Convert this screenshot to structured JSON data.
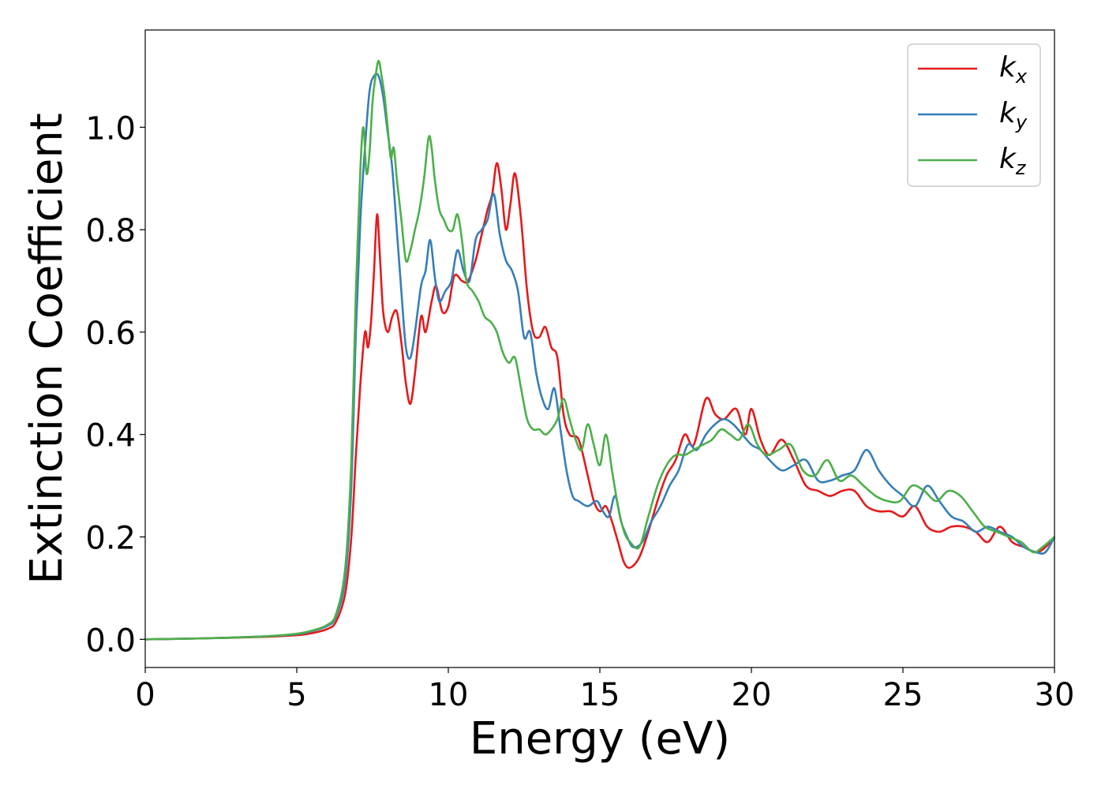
{
  "chart_data": {
    "type": "line",
    "title": "",
    "xlabel": "Energy (eV)",
    "ylabel": "Extinction Coefficient",
    "xlim": [
      0,
      30
    ],
    "ylim": [
      -0.055,
      1.19
    ],
    "xticks": [
      0,
      5,
      10,
      15,
      20,
      25,
      30
    ],
    "yticks": [
      0.0,
      0.2,
      0.4,
      0.6,
      0.8,
      1.0
    ],
    "xtick_labels": [
      "0",
      "5",
      "10",
      "15",
      "20",
      "25",
      "30"
    ],
    "ytick_labels": [
      "0.0",
      "0.2",
      "0.4",
      "0.6",
      "0.8",
      "1.0"
    ],
    "grid": false,
    "legend_position": "top-right",
    "series": [
      {
        "name": "kx",
        "label_base": "k",
        "label_sub": "x",
        "color": "#e41a1c",
        "x": [
          0,
          2,
          4,
          5,
          5.5,
          6,
          6.3,
          6.6,
          6.8,
          6.95,
          7.1,
          7.25,
          7.35,
          7.45,
          7.55,
          7.65,
          7.75,
          7.85,
          8.0,
          8.15,
          8.3,
          8.45,
          8.6,
          8.75,
          8.9,
          9.1,
          9.25,
          9.45,
          9.6,
          9.8,
          10.0,
          10.2,
          10.45,
          10.65,
          10.9,
          11.1,
          11.3,
          11.45,
          11.6,
          11.75,
          11.9,
          12.05,
          12.2,
          12.4,
          12.6,
          12.8,
          13.0,
          13.2,
          13.4,
          13.6,
          13.8,
          14.0,
          14.3,
          14.6,
          14.8,
          15.0,
          15.2,
          15.4,
          15.6,
          15.8,
          16.0,
          16.3,
          16.6,
          16.9,
          17.2,
          17.5,
          17.8,
          18.1,
          18.5,
          18.8,
          19.1,
          19.5,
          19.8,
          20.0,
          20.3,
          20.6,
          21.0,
          21.4,
          21.8,
          22.2,
          22.6,
          23.0,
          23.4,
          23.8,
          24.2,
          24.6,
          25.0,
          25.4,
          25.8,
          26.2,
          26.6,
          27.0,
          27.4,
          27.8,
          28.2,
          28.6,
          29.0,
          29.4,
          29.7,
          30.0
        ],
        "y": [
          0.0,
          0.002,
          0.005,
          0.008,
          0.012,
          0.02,
          0.035,
          0.09,
          0.2,
          0.36,
          0.5,
          0.6,
          0.57,
          0.62,
          0.72,
          0.83,
          0.74,
          0.64,
          0.6,
          0.63,
          0.64,
          0.58,
          0.5,
          0.46,
          0.52,
          0.63,
          0.6,
          0.66,
          0.69,
          0.64,
          0.65,
          0.71,
          0.7,
          0.7,
          0.74,
          0.79,
          0.84,
          0.87,
          0.93,
          0.88,
          0.8,
          0.85,
          0.91,
          0.82,
          0.68,
          0.6,
          0.59,
          0.61,
          0.57,
          0.55,
          0.44,
          0.4,
          0.39,
          0.32,
          0.27,
          0.25,
          0.26,
          0.23,
          0.19,
          0.15,
          0.14,
          0.16,
          0.21,
          0.27,
          0.32,
          0.35,
          0.4,
          0.38,
          0.47,
          0.44,
          0.43,
          0.45,
          0.4,
          0.45,
          0.39,
          0.36,
          0.39,
          0.35,
          0.3,
          0.29,
          0.28,
          0.29,
          0.29,
          0.26,
          0.25,
          0.25,
          0.24,
          0.26,
          0.22,
          0.21,
          0.22,
          0.22,
          0.21,
          0.19,
          0.22,
          0.19,
          0.18,
          0.17,
          0.18,
          0.2
        ]
      },
      {
        "name": "ky",
        "label_base": "k",
        "label_sub": "y",
        "color": "#377eb8",
        "x": [
          0,
          2,
          4,
          5,
          5.5,
          6,
          6.3,
          6.6,
          6.8,
          6.95,
          7.1,
          7.25,
          7.4,
          7.55,
          7.7,
          7.85,
          8.0,
          8.15,
          8.3,
          8.45,
          8.6,
          8.75,
          8.9,
          9.1,
          9.25,
          9.4,
          9.55,
          9.7,
          9.9,
          10.1,
          10.3,
          10.5,
          10.7,
          10.9,
          11.1,
          11.3,
          11.5,
          11.7,
          11.9,
          12.1,
          12.3,
          12.5,
          12.7,
          12.9,
          13.1,
          13.3,
          13.5,
          13.7,
          13.9,
          14.1,
          14.3,
          14.6,
          14.9,
          15.1,
          15.3,
          15.5,
          15.7,
          15.9,
          16.1,
          16.4,
          16.7,
          17.0,
          17.3,
          17.6,
          17.9,
          18.2,
          18.5,
          18.8,
          19.1,
          19.4,
          19.7,
          20.0,
          20.3,
          20.6,
          21.0,
          21.4,
          21.8,
          22.2,
          22.6,
          23.0,
          23.4,
          23.8,
          24.2,
          24.6,
          25.0,
          25.4,
          25.8,
          26.2,
          26.6,
          27.0,
          27.4,
          27.8,
          28.2,
          28.6,
          29.0,
          29.4,
          29.7,
          30.0
        ],
        "y": [
          0.0,
          0.002,
          0.006,
          0.01,
          0.016,
          0.026,
          0.045,
          0.12,
          0.3,
          0.6,
          0.82,
          0.96,
          1.07,
          1.1,
          1.1,
          1.06,
          0.99,
          0.92,
          0.8,
          0.68,
          0.57,
          0.55,
          0.6,
          0.69,
          0.72,
          0.78,
          0.71,
          0.66,
          0.68,
          0.7,
          0.76,
          0.72,
          0.7,
          0.78,
          0.8,
          0.82,
          0.87,
          0.79,
          0.74,
          0.72,
          0.68,
          0.59,
          0.6,
          0.52,
          0.47,
          0.45,
          0.49,
          0.41,
          0.33,
          0.28,
          0.27,
          0.26,
          0.27,
          0.25,
          0.24,
          0.28,
          0.23,
          0.2,
          0.18,
          0.19,
          0.23,
          0.26,
          0.3,
          0.33,
          0.38,
          0.37,
          0.4,
          0.42,
          0.43,
          0.42,
          0.4,
          0.38,
          0.37,
          0.35,
          0.33,
          0.34,
          0.35,
          0.31,
          0.31,
          0.32,
          0.33,
          0.37,
          0.33,
          0.3,
          0.28,
          0.26,
          0.3,
          0.27,
          0.24,
          0.23,
          0.21,
          0.22,
          0.21,
          0.2,
          0.18,
          0.17,
          0.17,
          0.2
        ]
      },
      {
        "name": "kz",
        "label_base": "k",
        "label_sub": "z",
        "color": "#4daf4a",
        "x": [
          0,
          2,
          4,
          5,
          5.5,
          6,
          6.3,
          6.6,
          6.8,
          6.95,
          7.1,
          7.2,
          7.3,
          7.4,
          7.5,
          7.6,
          7.7,
          7.8,
          7.9,
          8.0,
          8.1,
          8.2,
          8.3,
          8.45,
          8.6,
          8.75,
          8.9,
          9.05,
          9.2,
          9.35,
          9.45,
          9.55,
          9.7,
          9.85,
          10.0,
          10.15,
          10.3,
          10.45,
          10.6,
          10.8,
          11.0,
          11.2,
          11.4,
          11.6,
          11.8,
          12.0,
          12.2,
          12.4,
          12.6,
          12.8,
          13.0,
          13.2,
          13.4,
          13.6,
          13.8,
          14.0,
          14.2,
          14.4,
          14.6,
          14.8,
          15.0,
          15.2,
          15.4,
          15.6,
          15.8,
          16.0,
          16.3,
          16.6,
          16.9,
          17.2,
          17.5,
          17.8,
          18.1,
          18.4,
          18.7,
          19.0,
          19.3,
          19.6,
          19.9,
          20.2,
          20.5,
          20.9,
          21.3,
          21.7,
          22.1,
          22.5,
          22.9,
          23.3,
          23.7,
          24.1,
          24.5,
          24.9,
          25.3,
          25.7,
          26.1,
          26.5,
          26.9,
          27.3,
          27.7,
          28.1,
          28.5,
          28.9,
          29.3,
          29.6,
          30.0
        ],
        "y": [
          0.0,
          0.002,
          0.006,
          0.011,
          0.017,
          0.028,
          0.05,
          0.14,
          0.35,
          0.68,
          0.92,
          1.0,
          0.91,
          0.95,
          1.05,
          1.1,
          1.13,
          1.1,
          1.06,
          1.0,
          0.94,
          0.96,
          0.9,
          0.82,
          0.74,
          0.76,
          0.8,
          0.84,
          0.9,
          0.98,
          0.96,
          0.9,
          0.84,
          0.82,
          0.8,
          0.8,
          0.83,
          0.78,
          0.7,
          0.68,
          0.66,
          0.63,
          0.62,
          0.6,
          0.56,
          0.54,
          0.55,
          0.49,
          0.43,
          0.41,
          0.41,
          0.4,
          0.41,
          0.43,
          0.47,
          0.43,
          0.39,
          0.37,
          0.42,
          0.38,
          0.34,
          0.4,
          0.33,
          0.26,
          0.21,
          0.19,
          0.18,
          0.24,
          0.3,
          0.34,
          0.36,
          0.36,
          0.37,
          0.38,
          0.39,
          0.41,
          0.4,
          0.39,
          0.42,
          0.38,
          0.36,
          0.37,
          0.38,
          0.33,
          0.32,
          0.35,
          0.31,
          0.32,
          0.3,
          0.28,
          0.27,
          0.27,
          0.3,
          0.29,
          0.27,
          0.29,
          0.28,
          0.25,
          0.22,
          0.21,
          0.2,
          0.19,
          0.17,
          0.18,
          0.2
        ]
      }
    ]
  }
}
